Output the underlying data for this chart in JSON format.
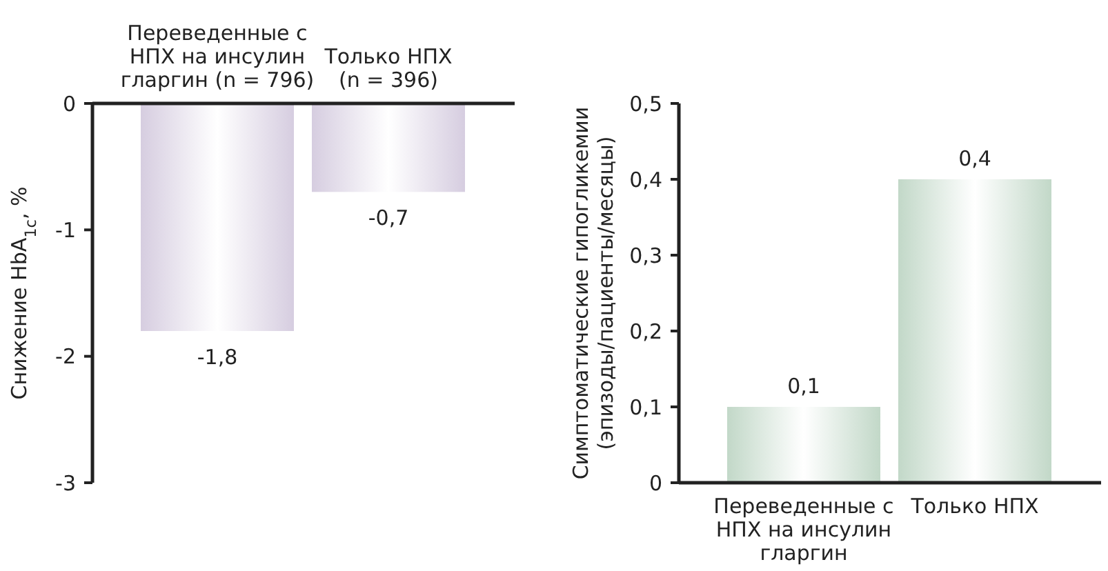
{
  "chart_data": [
    {
      "type": "bar",
      "ylabel": "Снижение HbA$_{1c}$, %",
      "categories": [
        "Переведенные с НПХ на инсулин гларгин (n = 796)",
        "Только НПХ (n = 396)"
      ],
      "values": [
        -1.8,
        -0.7
      ],
      "value_labels": [
        "-1,8",
        "-0,7"
      ],
      "color": "#d6cde0",
      "ylim": [
        -3,
        0
      ],
      "yticks": [
        0,
        -1,
        -2,
        -3
      ],
      "grid": false
    },
    {
      "type": "bar",
      "ylabel": "Симптоматические гипогликемии (эпизоды/пациенты/месяцы)",
      "categories": [
        "Переведенные с НПХ на инсулин гларгин",
        "Только НПХ"
      ],
      "values": [
        0.1,
        0.4
      ],
      "value_labels": [
        "0,1",
        "0,4"
      ],
      "color": "#c2d8c8",
      "ylim": [
        0,
        0.5
      ],
      "yticks": [
        {
          "value": 0,
          "label": "0"
        },
        {
          "value": 0.1,
          "label": "0,1"
        },
        {
          "value": 0.2,
          "label": "0,2"
        },
        {
          "value": 0.3,
          "label": "0,3"
        },
        {
          "value": 0.4,
          "label": "0,4"
        },
        {
          "value": 0.5,
          "label": "0,5"
        }
      ],
      "grid": false
    }
  ]
}
